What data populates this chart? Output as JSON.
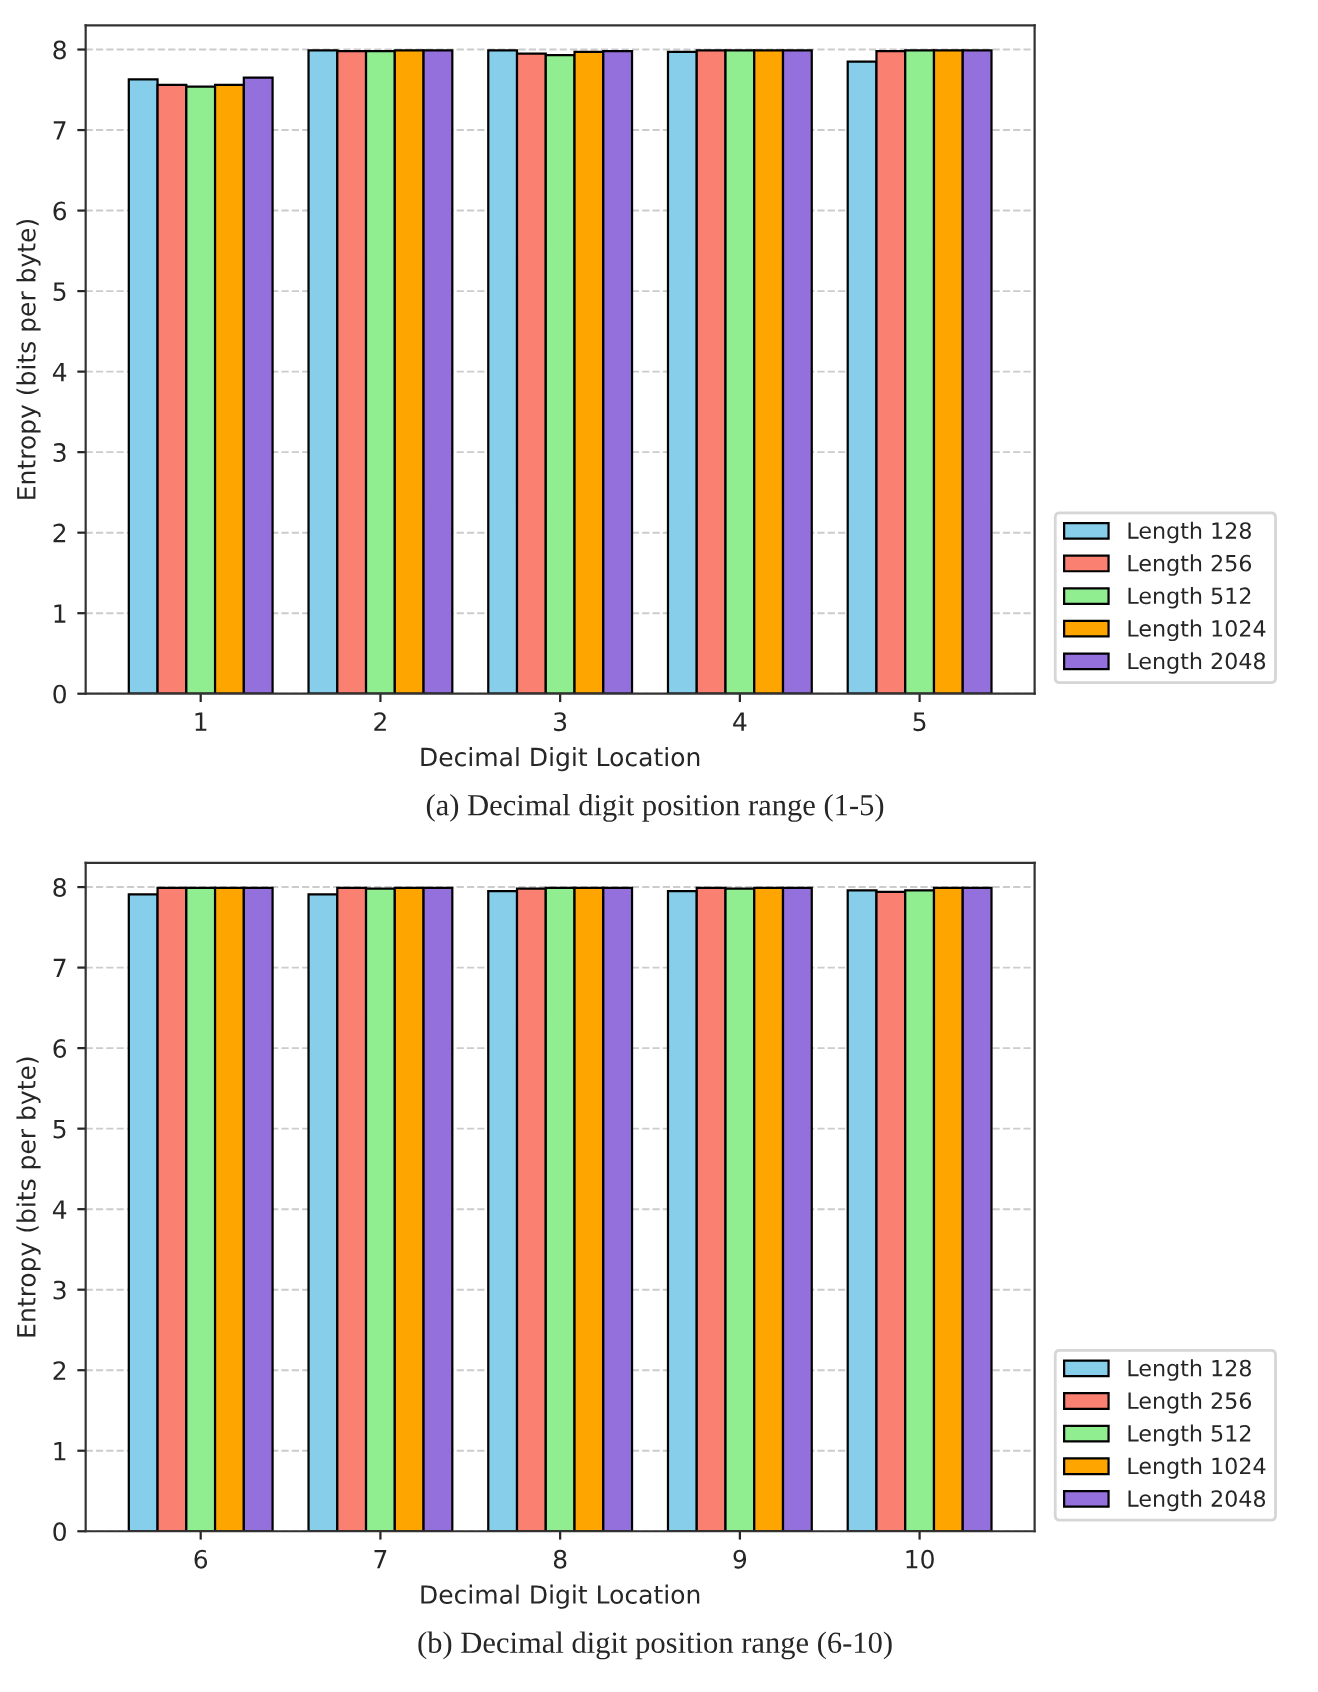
{
  "chart_data": [
    {
      "type": "bar",
      "categories": [
        "1",
        "2",
        "3",
        "4",
        "5"
      ],
      "xlabel": "Decimal Digit Location",
      "ylabel": "Entropy (bits per byte)",
      "ylim": [
        0,
        8.3
      ],
      "yticks": [
        0,
        1,
        2,
        3,
        4,
        5,
        6,
        7,
        8
      ],
      "grid": "y",
      "legend": "bottom right",
      "annotations": [
        "(a) Decimal digit position range (1-5)"
      ],
      "series": [
        {
          "name": "Length 128",
          "color": "#87ceeb",
          "values": [
            7.63,
            7.99,
            7.99,
            7.97,
            7.85
          ]
        },
        {
          "name": "Length 256",
          "color": "#fa8072",
          "values": [
            7.56,
            7.98,
            7.95,
            7.99,
            7.98
          ]
        },
        {
          "name": "Length 512",
          "color": "#90ee90",
          "values": [
            7.54,
            7.98,
            7.93,
            7.99,
            7.99
          ]
        },
        {
          "name": "Length 1024",
          "color": "#ffa500",
          "values": [
            7.56,
            7.99,
            7.97,
            7.99,
            7.99
          ]
        },
        {
          "name": "Length 2048",
          "color": "#9370db",
          "values": [
            7.65,
            7.99,
            7.98,
            7.99,
            7.99
          ]
        }
      ]
    },
    {
      "type": "bar",
      "categories": [
        "6",
        "7",
        "8",
        "9",
        "10"
      ],
      "xlabel": "Decimal Digit Location",
      "ylabel": "Entropy (bits per byte)",
      "ylim": [
        0,
        8.3
      ],
      "yticks": [
        0,
        1,
        2,
        3,
        4,
        5,
        6,
        7,
        8
      ],
      "grid": "y",
      "legend": "bottom right",
      "annotations": [
        "(b) Decimal digit position range (6-10)"
      ],
      "series": [
        {
          "name": "Length 128",
          "color": "#87ceeb",
          "values": [
            7.91,
            7.91,
            7.95,
            7.95,
            7.96
          ]
        },
        {
          "name": "Length 256",
          "color": "#fa8072",
          "values": [
            7.99,
            7.99,
            7.98,
            7.99,
            7.94
          ]
        },
        {
          "name": "Length 512",
          "color": "#90ee90",
          "values": [
            7.99,
            7.98,
            7.99,
            7.98,
            7.96
          ]
        },
        {
          "name": "Length 1024",
          "color": "#ffa500",
          "values": [
            7.99,
            7.99,
            7.99,
            7.99,
            7.99
          ]
        },
        {
          "name": "Length 2048",
          "color": "#9370db",
          "values": [
            7.99,
            7.99,
            7.99,
            7.99,
            7.99
          ]
        }
      ]
    }
  ]
}
